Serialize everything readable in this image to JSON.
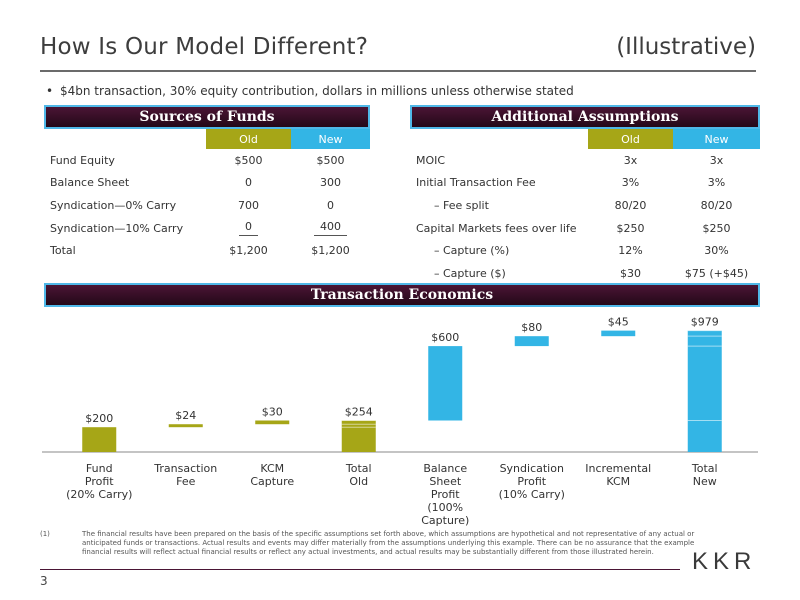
{
  "header": {
    "title": "How Is Our Model Different?",
    "title_right": "(Illustrative)",
    "bullet": "$4bn transaction, 30% equity contribution, dollars in millions unless otherwise stated"
  },
  "sources": {
    "banner": "Sources of Funds",
    "col_old": "Old",
    "col_new": "New",
    "rows": [
      {
        "label": "Fund Equity",
        "old": "$500",
        "new": "$500"
      },
      {
        "label": "Balance Sheet",
        "old": "0",
        "new": "300"
      },
      {
        "label": "Syndication—0% Carry",
        "old": "700",
        "new": "0"
      },
      {
        "label": "Syndication—10% Carry",
        "old": "0",
        "new": "400"
      },
      {
        "label": "Total",
        "old": "$1,200",
        "new": "$1,200"
      }
    ]
  },
  "assumptions": {
    "banner": "Additional Assumptions",
    "col_old": "Old",
    "col_new": "New",
    "rows": [
      {
        "label": "MOIC",
        "old": "3x",
        "new": "3x"
      },
      {
        "label": "Initial Transaction Fee",
        "old": "3%",
        "new": "3%"
      },
      {
        "label": "– Fee split",
        "old": "80/20",
        "new": "80/20"
      },
      {
        "label": "Capital Markets fees over life",
        "old": "$250",
        "new": "$250"
      },
      {
        "label": "– Capture (%)",
        "old": "12%",
        "new": "30%"
      },
      {
        "label": "– Capture ($)",
        "old": "$30",
        "new": "$75 (+$45)"
      }
    ]
  },
  "economics": {
    "banner": "Transaction Economics"
  },
  "chart_data": {
    "type": "bar",
    "subtype": "waterfall",
    "categories": [
      [
        "Fund",
        "Profit",
        "(20% Carry)"
      ],
      [
        "Transaction",
        "Fee"
      ],
      [
        "KCM",
        "Capture"
      ],
      [
        "Total",
        "Old"
      ],
      [
        "Balance",
        "Sheet",
        "Profit",
        "(100%",
        "Capture)"
      ],
      [
        "Syndication",
        "Profit",
        "(10% Carry)"
      ],
      [
        "Incremental",
        "KCM"
      ],
      [
        "Total",
        "New"
      ]
    ],
    "values": [
      200,
      24,
      30,
      254,
      600,
      80,
      45,
      979
    ],
    "starts": [
      0,
      200,
      224,
      0,
      254,
      854,
      934,
      0
    ],
    "labels": [
      "$200",
      "$24",
      "$30",
      "$254",
      "$600",
      "$80",
      "$45",
      "$979"
    ],
    "total_segments": [
      [],
      [],
      [],
      [
        200,
        224,
        254
      ],
      [],
      [],
      [],
      [
        254,
        854,
        934,
        979
      ]
    ],
    "colors": {
      "old": "#a6a617",
      "new": "#33b5e5"
    },
    "bar_color_keys": [
      "old",
      "old",
      "old",
      "old",
      "new",
      "new",
      "new",
      "new"
    ],
    "ylim": [
      0,
      1000
    ],
    "grid": false
  },
  "footnote": {
    "number": "(1)",
    "text": "The financial results have been prepared on the basis of the specific assumptions set forth above, which assumptions are hypothetical and not representative of any actual or anticipated funds or transactions. Actual results and events may differ materially from the assumptions underlying this example. There can be no assurance that the example financial results will reflect actual financial results or reflect any actual investments, and actual results may be substantially different from those illustrated herein."
  },
  "page_number": "3",
  "logo": {
    "text": "KKR"
  }
}
